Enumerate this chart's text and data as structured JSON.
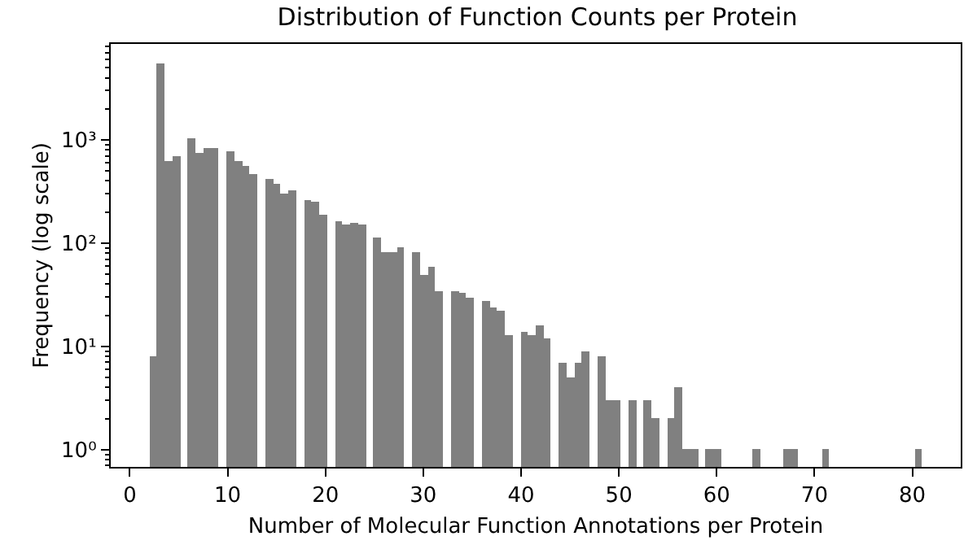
{
  "chart_data": {
    "type": "histogram",
    "title": "Distribution of Function Counts per Protein",
    "xlabel": "Number of Molecular Function Annotations per Protein",
    "ylabel": "Frequency (log scale)",
    "color": "#808080",
    "log": "y",
    "bins": [
      2,
      2.79,
      3.58,
      4.37,
      5.16,
      5.95,
      6.74,
      7.53,
      8.32,
      9.11,
      9.9,
      10.69,
      11.48,
      12.27,
      13.06,
      13.85,
      14.64,
      15.43,
      16.22,
      17.01,
      17.8,
      18.59,
      19.38,
      20.17,
      20.96,
      21.75,
      22.54,
      23.33,
      24.12,
      24.91,
      25.7,
      26.49,
      27.28,
      28.07,
      28.86,
      29.65,
      30.44,
      31.23,
      32.02,
      32.81,
      33.6,
      34.39,
      35.18,
      35.97,
      36.76,
      37.55,
      38.34,
      39.13,
      39.92,
      40.71,
      41.5,
      42.29,
      43.08,
      43.87,
      44.66,
      45.45,
      46.24,
      47.03,
      47.82,
      48.61,
      49.4,
      50.19,
      50.98,
      51.77,
      52.56,
      53.35,
      54.14,
      54.93,
      55.72,
      56.51,
      57.3,
      58.09,
      58.88,
      59.67,
      60.46,
      61.25,
      62.04,
      62.83,
      63.62,
      64.41,
      65.2,
      65.99,
      66.78,
      67.57,
      68.36,
      69.15,
      69.94,
      70.73,
      71.52,
      72.31,
      73.1,
      73.89,
      74.68,
      75.47,
      76.26,
      77.05,
      77.84,
      78.63,
      79.42,
      80.21,
      81
    ],
    "values": [
      8,
      5500,
      630,
      690,
      null,
      1040,
      740,
      830,
      820,
      null,
      770,
      630,
      550,
      460,
      null,
      425,
      370,
      300,
      320,
      null,
      260,
      250,
      190,
      null,
      160,
      150,
      155,
      150,
      null,
      113,
      83,
      83,
      92,
      null,
      81,
      49,
      58,
      34,
      null,
      34,
      33,
      30,
      null,
      28,
      24,
      22,
      13,
      null,
      14,
      13,
      16,
      12,
      null,
      7,
      5,
      7,
      9,
      null,
      8,
      3,
      3,
      null,
      3,
      null,
      3,
      2,
      null,
      2,
      4,
      1,
      1,
      null,
      1,
      1,
      null,
      null,
      null,
      null,
      1,
      null,
      null,
      null,
      1,
      1,
      null,
      null,
      null,
      1,
      null,
      null,
      null,
      null,
      null,
      null,
      null,
      null,
      null,
      null,
      null,
      1
    ],
    "xlim": [
      -1.95,
      84.95
    ],
    "xticks": [
      0,
      10,
      20,
      30,
      40,
      50,
      60,
      70,
      80
    ],
    "ylim": [
      0.68,
      8500
    ],
    "yticks": [
      {
        "value": 1,
        "label": "10⁰"
      },
      {
        "value": 10,
        "label": "10¹"
      },
      {
        "value": 100,
        "label": "10²"
      },
      {
        "value": 1000,
        "label": "10³"
      }
    ]
  }
}
